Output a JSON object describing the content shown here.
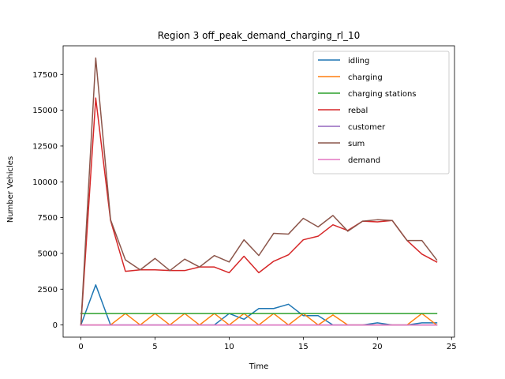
{
  "chart_data": {
    "type": "line",
    "title": "Region 3 off_peak_demand_charging_rl_10",
    "xlabel": "Time",
    "ylabel": "Number Vehicles",
    "xlim": [
      -1.2,
      25.2
    ],
    "ylim": [
      -850,
      19500
    ],
    "xticks": [
      0,
      5,
      10,
      15,
      20,
      25
    ],
    "yticks": [
      0,
      2500,
      5000,
      7500,
      10000,
      12500,
      15000,
      17500
    ],
    "grid": false,
    "legend_position": "top-right",
    "x": [
      0,
      1,
      2,
      3,
      4,
      5,
      6,
      7,
      8,
      9,
      10,
      11,
      12,
      13,
      14,
      15,
      16,
      17,
      18,
      19,
      20,
      21,
      22,
      23,
      24
    ],
    "series": [
      {
        "name": "idling",
        "color": "#1f77b4",
        "values": [
          0,
          2800,
          0,
          0,
          0,
          0,
          0,
          0,
          0,
          0,
          800,
          400,
          1150,
          1150,
          1450,
          650,
          650,
          0,
          0,
          0,
          150,
          0,
          0,
          150,
          150
        ]
      },
      {
        "name": "charging",
        "color": "#ff7f0e",
        "values": [
          0,
          0,
          0,
          800,
          0,
          800,
          0,
          800,
          0,
          800,
          0,
          800,
          0,
          800,
          0,
          800,
          0,
          700,
          0,
          0,
          0,
          0,
          0,
          800,
          0
        ]
      },
      {
        "name": "charging stations",
        "color": "#2ca02c",
        "values": [
          800,
          800,
          800,
          800,
          800,
          800,
          800,
          800,
          800,
          800,
          800,
          800,
          800,
          800,
          800,
          800,
          800,
          800,
          800,
          800,
          800,
          800,
          800,
          800,
          800
        ]
      },
      {
        "name": "rebal",
        "color": "#d62728",
        "values": [
          0,
          15850,
          7300,
          3750,
          3850,
          3850,
          3800,
          3800,
          4050,
          4050,
          3650,
          4800,
          3650,
          4450,
          4900,
          5950,
          6200,
          7000,
          6600,
          7250,
          7200,
          7300,
          5900,
          4950,
          4400
        ]
      },
      {
        "name": "customer",
        "color": "#9467bd",
        "values": [
          0,
          0,
          0,
          0,
          0,
          0,
          0,
          0,
          0,
          0,
          0,
          0,
          0,
          0,
          0,
          0,
          0,
          0,
          0,
          0,
          0,
          0,
          0,
          0,
          0
        ]
      },
      {
        "name": "sum",
        "color": "#8c564b",
        "values": [
          0,
          18650,
          7350,
          4550,
          3850,
          4650,
          3800,
          4600,
          4050,
          4850,
          4400,
          5950,
          4850,
          6400,
          6350,
          7450,
          6850,
          7650,
          6550,
          7250,
          7350,
          7300,
          5900,
          5900,
          4550
        ]
      },
      {
        "name": "demand",
        "color": "#e377c2",
        "values": [
          0,
          0,
          0,
          0,
          0,
          0,
          0,
          0,
          0,
          0,
          0,
          0,
          0,
          0,
          0,
          0,
          0,
          0,
          0,
          0,
          0,
          0,
          0,
          0,
          0
        ]
      }
    ]
  }
}
